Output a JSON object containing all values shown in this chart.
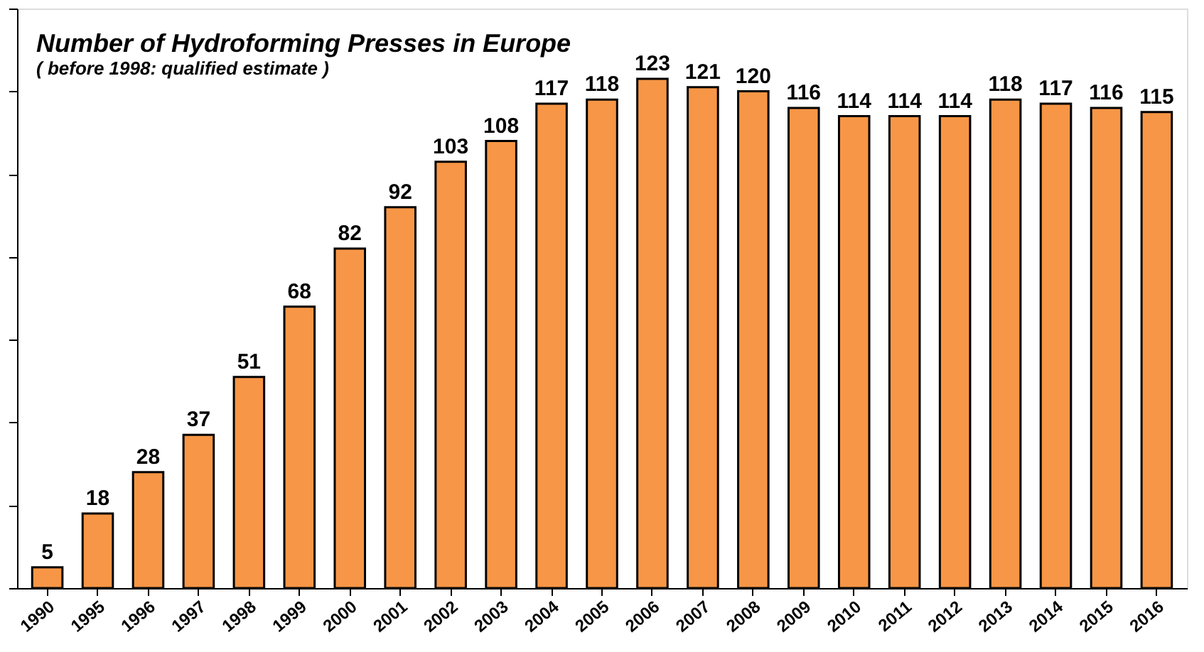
{
  "chart_data": {
    "type": "bar",
    "title": "Number of Hydroforming Presses in Europe",
    "subtitle": "( before 1998: qualified estimate )",
    "categories": [
      "1990",
      "1995",
      "1996",
      "1997",
      "1998",
      "1999",
      "2000",
      "2001",
      "2002",
      "2003",
      "2004",
      "2005",
      "2006",
      "2007",
      "2008",
      "2009",
      "2010",
      "2011",
      "2012",
      "2013",
      "2014",
      "2015",
      "2016"
    ],
    "values": [
      5,
      18,
      28,
      37,
      51,
      68,
      82,
      92,
      103,
      108,
      117,
      118,
      123,
      121,
      120,
      116,
      114,
      114,
      114,
      118,
      117,
      116,
      115
    ],
    "color": "#f79646",
    "data_labels": true,
    "ylim": [
      0,
      140
    ],
    "yticks": [
      {
        "value": 0,
        "label": null
      },
      {
        "value": 20,
        "label": null
      },
      {
        "value": 40,
        "label": null
      },
      {
        "value": 60,
        "label": null
      },
      {
        "value": 80,
        "label": null
      },
      {
        "value": 100,
        "label": null
      },
      {
        "value": 120,
        "label": null
      },
      {
        "value": 140,
        "label": null
      }
    ],
    "tick_labels": "x",
    "grid": false
  }
}
